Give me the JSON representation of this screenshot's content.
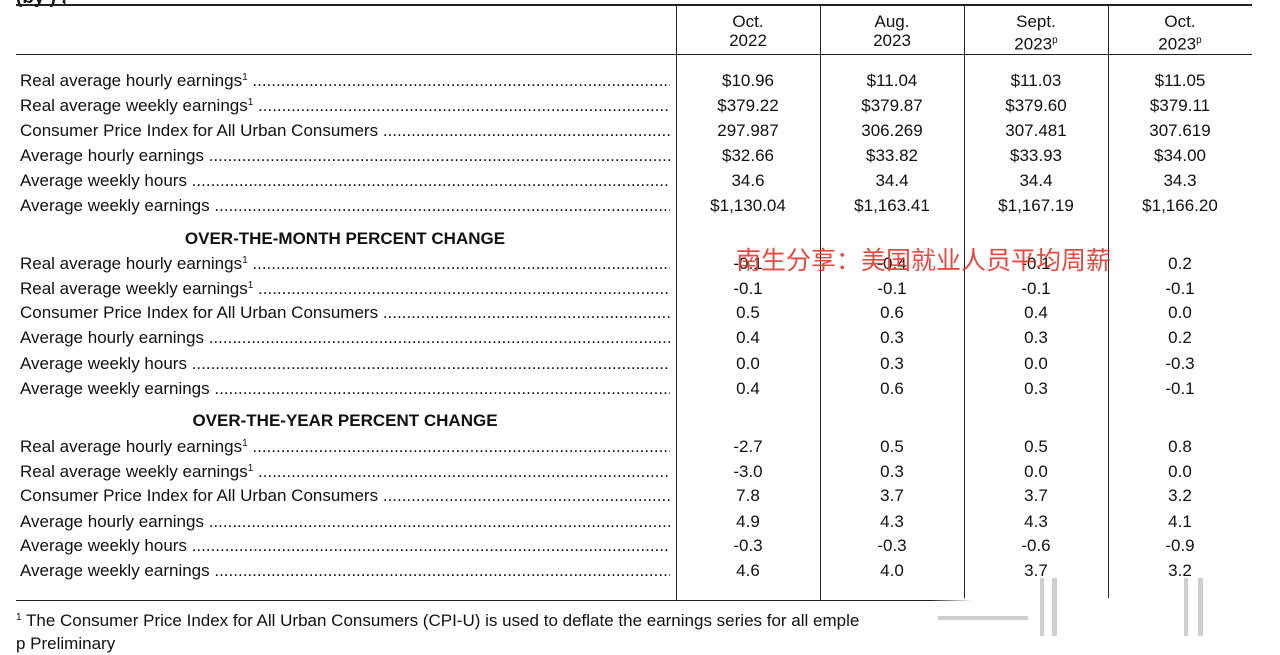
{
  "page": {
    "cut_title": "(by ) , "
  },
  "columns": [
    {
      "line1": "Oct.",
      "line2": "2022",
      "prelim": ""
    },
    {
      "line1": "Aug.",
      "line2": "2023",
      "prelim": ""
    },
    {
      "line1": "Sept.",
      "line2": "2023",
      "prelim": "p"
    },
    {
      "line1": "Oct.",
      "line2": "2023",
      "prelim": "p"
    }
  ],
  "levels": [
    {
      "label": "Real average hourly earnings",
      "footnote": "1",
      "values": [
        "$10.96",
        "$11.04",
        "$11.03",
        "$11.05"
      ]
    },
    {
      "label": "Real average weekly earnings",
      "footnote": "1",
      "values": [
        "$379.22",
        "$379.87",
        "$379.60",
        "$379.11"
      ]
    },
    {
      "label": "Consumer Price Index for All Urban Consumers",
      "footnote": "",
      "values": [
        "297.987",
        "306.269",
        "307.481",
        "307.619"
      ]
    },
    {
      "label": "Average hourly earnings",
      "footnote": "",
      "values": [
        "$32.66",
        "$33.82",
        "$33.93",
        "$34.00"
      ]
    },
    {
      "label": "Average weekly hours",
      "footnote": "",
      "values": [
        "34.6",
        "34.4",
        "34.4",
        "34.3"
      ]
    },
    {
      "label": "Average weekly earnings",
      "footnote": "",
      "values": [
        "$1,130.04",
        "$1,163.41",
        "$1,167.19",
        "$1,166.20"
      ]
    }
  ],
  "month_section": {
    "title": "OVER-THE-MONTH PERCENT CHANGE",
    "rows": [
      {
        "label": "Real average hourly earnings",
        "footnote": "1",
        "values": [
          "-0.1",
          "-0.4",
          "-0.1",
          "0.2"
        ]
      },
      {
        "label": "Real average weekly earnings",
        "footnote": "1",
        "values": [
          "-0.1",
          "-0.1",
          "-0.1",
          "-0.1"
        ]
      },
      {
        "label": "Consumer Price Index for All Urban Consumers",
        "footnote": "",
        "values": [
          "0.5",
          "0.6",
          "0.4",
          "0.0"
        ]
      },
      {
        "label": "Average hourly earnings",
        "footnote": "",
        "values": [
          "0.4",
          "0.3",
          "0.3",
          "0.2"
        ]
      },
      {
        "label": "Average weekly hours",
        "footnote": "",
        "values": [
          "0.0",
          "0.3",
          "0.0",
          "-0.3"
        ]
      },
      {
        "label": "Average weekly earnings",
        "footnote": "",
        "values": [
          "0.4",
          "0.6",
          "0.3",
          "-0.1"
        ]
      }
    ]
  },
  "year_section": {
    "title": "OVER-THE-YEAR PERCENT CHANGE",
    "rows": [
      {
        "label": "Real average hourly earnings",
        "footnote": "1",
        "values": [
          "-2.7",
          "0.5",
          "0.5",
          "0.8"
        ]
      },
      {
        "label": "Real average weekly earnings",
        "footnote": "1",
        "values": [
          "-3.0",
          "0.3",
          "0.0",
          "0.0"
        ]
      },
      {
        "label": "Consumer Price Index for All Urban Consumers",
        "footnote": "",
        "values": [
          "7.8",
          "3.7",
          "3.7",
          "3.2"
        ]
      },
      {
        "label": "Average hourly earnings",
        "footnote": "",
        "values": [
          "4.9",
          "4.3",
          "4.3",
          "4.1"
        ]
      },
      {
        "label": "Average weekly hours",
        "footnote": "",
        "values": [
          "-0.3",
          "-0.3",
          "-0.6",
          "-0.9"
        ]
      },
      {
        "label": "Average weekly earnings",
        "footnote": "",
        "values": [
          "4.6",
          "4.0",
          "3.7",
          "3.2"
        ]
      }
    ]
  },
  "footnotes": {
    "note1_marker": "1",
    "note1_text": "The Consumer Price Index for All Urban Consumers (CPI-U) is used to deflate the earnings series for all emple",
    "note_p": "p  Preliminary"
  },
  "watermark": "南生分享：美国就业人员平均周薪",
  "colors": {
    "watermark": "#e8382f",
    "rules": "#222222",
    "text": "#111111"
  }
}
